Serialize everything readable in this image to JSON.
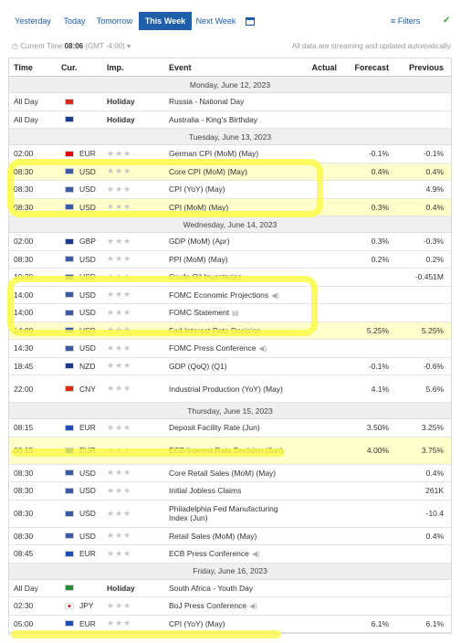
{
  "tabs": [
    "Yesterday",
    "Today",
    "Tomorrow",
    "This Week",
    "Next Week"
  ],
  "filters_label": "Filters",
  "current_time_label": "Current Time:",
  "current_time": "08:06",
  "timezone": "(GMT -4:00)",
  "stream_note": "All data are streaming and updated automatically.",
  "headers": {
    "time": "Time",
    "cur": "Cur.",
    "imp": "Imp.",
    "event": "Event",
    "actual": "Actual",
    "forecast": "Forecast",
    "previous": "Previous"
  },
  "flags": {
    "RU": "#d52b1e",
    "AU": "#1e3a8a",
    "DE": "#d00",
    "US": "#3c5aa6",
    "GB": "#1e3a8a",
    "NZ": "#1e3a8a",
    "CN": "#de2910",
    "EU": "#1e4db7",
    "ZA": "#2a8a3a",
    "JP": "#ffffff"
  },
  "stars": "★★★",
  "days": [
    {
      "label": "Monday, June 12, 2023",
      "rows": [
        {
          "time": "All Day",
          "flag": "RU",
          "cur": "",
          "imp": "Holiday",
          "event": "Russia - National Day",
          "actual": "",
          "forecast": "",
          "previous": ""
        },
        {
          "time": "All Day",
          "flag": "AU",
          "cur": "",
          "imp": "Holiday",
          "event": "Australia - King's Birthday",
          "actual": "",
          "forecast": "",
          "previous": ""
        }
      ]
    },
    {
      "label": "Tuesday, June 13, 2023",
      "rows": [
        {
          "time": "02:00",
          "flag": "DE",
          "cur": "EUR",
          "imp": "",
          "event": "German CPI (MoM) (May)",
          "actual": "",
          "forecast": "-0.1%",
          "previous": "-0.1%"
        },
        {
          "time": "08:30",
          "flag": "US",
          "cur": "USD",
          "imp": "",
          "event": "Core CPI (MoM) (May)",
          "actual": "",
          "forecast": "0.4%",
          "previous": "0.4%"
        },
        {
          "time": "08:30",
          "flag": "US",
          "cur": "USD",
          "imp": "",
          "event": "CPI (YoY) (May)",
          "actual": "",
          "forecast": "",
          "previous": "4.9%"
        },
        {
          "time": "08:30",
          "flag": "US",
          "cur": "USD",
          "imp": "",
          "event": "CPI (MoM) (May)",
          "actual": "",
          "forecast": "0.3%",
          "previous": "0.4%"
        }
      ]
    },
    {
      "label": "Wednesday, June 14, 2023",
      "rows": [
        {
          "time": "02:00",
          "flag": "GB",
          "cur": "GBP",
          "imp": "",
          "event": "GDP (MoM) (Apr)",
          "actual": "",
          "forecast": "0.3%",
          "previous": "-0.3%"
        },
        {
          "time": "08:30",
          "flag": "US",
          "cur": "USD",
          "imp": "",
          "event": "PPI (MoM) (May)",
          "actual": "",
          "forecast": "0.2%",
          "previous": "0.2%"
        },
        {
          "time": "10:30",
          "flag": "US",
          "cur": "USD",
          "imp": "",
          "event": "Crude Oil Inventories",
          "actual": "",
          "forecast": "",
          "previous": "-0.451M"
        },
        {
          "time": "14:00",
          "flag": "US",
          "cur": "USD",
          "imp": "",
          "event": "FOMC Economic Projections",
          "icon": "speaker-icon",
          "actual": "",
          "forecast": "",
          "previous": ""
        },
        {
          "time": "14:00",
          "flag": "US",
          "cur": "USD",
          "imp": "",
          "event": "FOMC Statement",
          "icon": "document-icon",
          "actual": "",
          "forecast": "",
          "previous": ""
        },
        {
          "time": "14:00",
          "flag": "US",
          "cur": "USD",
          "imp": "",
          "event": "Fed Interest Rate Decision",
          "actual": "",
          "forecast": "5.25%",
          "previous": "5.25%"
        },
        {
          "time": "14:30",
          "flag": "US",
          "cur": "USD",
          "imp": "",
          "event": "FOMC Press Conference",
          "icon": "speaker-icon",
          "actual": "",
          "forecast": "",
          "previous": ""
        },
        {
          "time": "18:45",
          "flag": "NZ",
          "cur": "NZD",
          "imp": "",
          "event": "GDP (QoQ) (Q1)",
          "actual": "",
          "forecast": "-0.1%",
          "previous": "-0.6%"
        },
        {
          "time": "22:00",
          "flag": "CN",
          "cur": "CNY",
          "imp": "",
          "event": "Industrial Production (YoY) (May)",
          "actual": "",
          "forecast": "4.1%",
          "previous": "5.6%",
          "tall": true
        }
      ]
    },
    {
      "label": "Thursday, June 15, 2023",
      "rows": [
        {
          "time": "08:15",
          "flag": "EU",
          "cur": "EUR",
          "imp": "",
          "event": "Deposit Facility Rate (Jun)",
          "actual": "",
          "forecast": "3.50%",
          "previous": "3.25%"
        },
        {
          "time": "08:15",
          "flag": "EU",
          "cur": "EUR",
          "imp": "",
          "event": "ECB Interest Rate Decision (Jun)",
          "actual": "",
          "forecast": "4.00%",
          "previous": "3.75%",
          "tall": true
        },
        {
          "time": "08:30",
          "flag": "US",
          "cur": "USD",
          "imp": "",
          "event": "Core Retail Sales (MoM) (May)",
          "actual": "",
          "forecast": "",
          "previous": "0.4%"
        },
        {
          "time": "08:30",
          "flag": "US",
          "cur": "USD",
          "imp": "",
          "event": "Initial Jobless Claims",
          "actual": "",
          "forecast": "",
          "previous": "261K"
        },
        {
          "time": "08:30",
          "flag": "US",
          "cur": "USD",
          "imp": "",
          "event": "Philadelphia Fed Manufacturing Index (Jun)",
          "actual": "",
          "forecast": "",
          "previous": "-10.4",
          "tall": true
        },
        {
          "time": "08:30",
          "flag": "US",
          "cur": "USD",
          "imp": "",
          "event": "Retail Sales (MoM) (May)",
          "actual": "",
          "forecast": "",
          "previous": "0.4%"
        },
        {
          "time": "08:45",
          "flag": "EU",
          "cur": "EUR",
          "imp": "",
          "event": "ECB Press Conference",
          "icon": "speaker-icon",
          "actual": "",
          "forecast": "",
          "previous": ""
        }
      ]
    },
    {
      "label": "Friday, June 16, 2023",
      "rows": [
        {
          "time": "All Day",
          "flag": "ZA",
          "cur": "",
          "imp": "Holiday",
          "event": "South Africa - Youth Day",
          "actual": "",
          "forecast": "",
          "previous": ""
        },
        {
          "time": "02:30",
          "flag": "JP",
          "cur": "JPY",
          "imp": "",
          "event": "BoJ Press Conference",
          "icon": "speaker-icon",
          "actual": "",
          "forecast": "",
          "previous": ""
        },
        {
          "time": "05:00",
          "flag": "EU",
          "cur": "EUR",
          "imp": "",
          "event": "CPI (YoY) (May)",
          "actual": "",
          "forecast": "6.1%",
          "previous": "6.1%"
        }
      ]
    }
  ],
  "highlight_color": "#fafa46"
}
